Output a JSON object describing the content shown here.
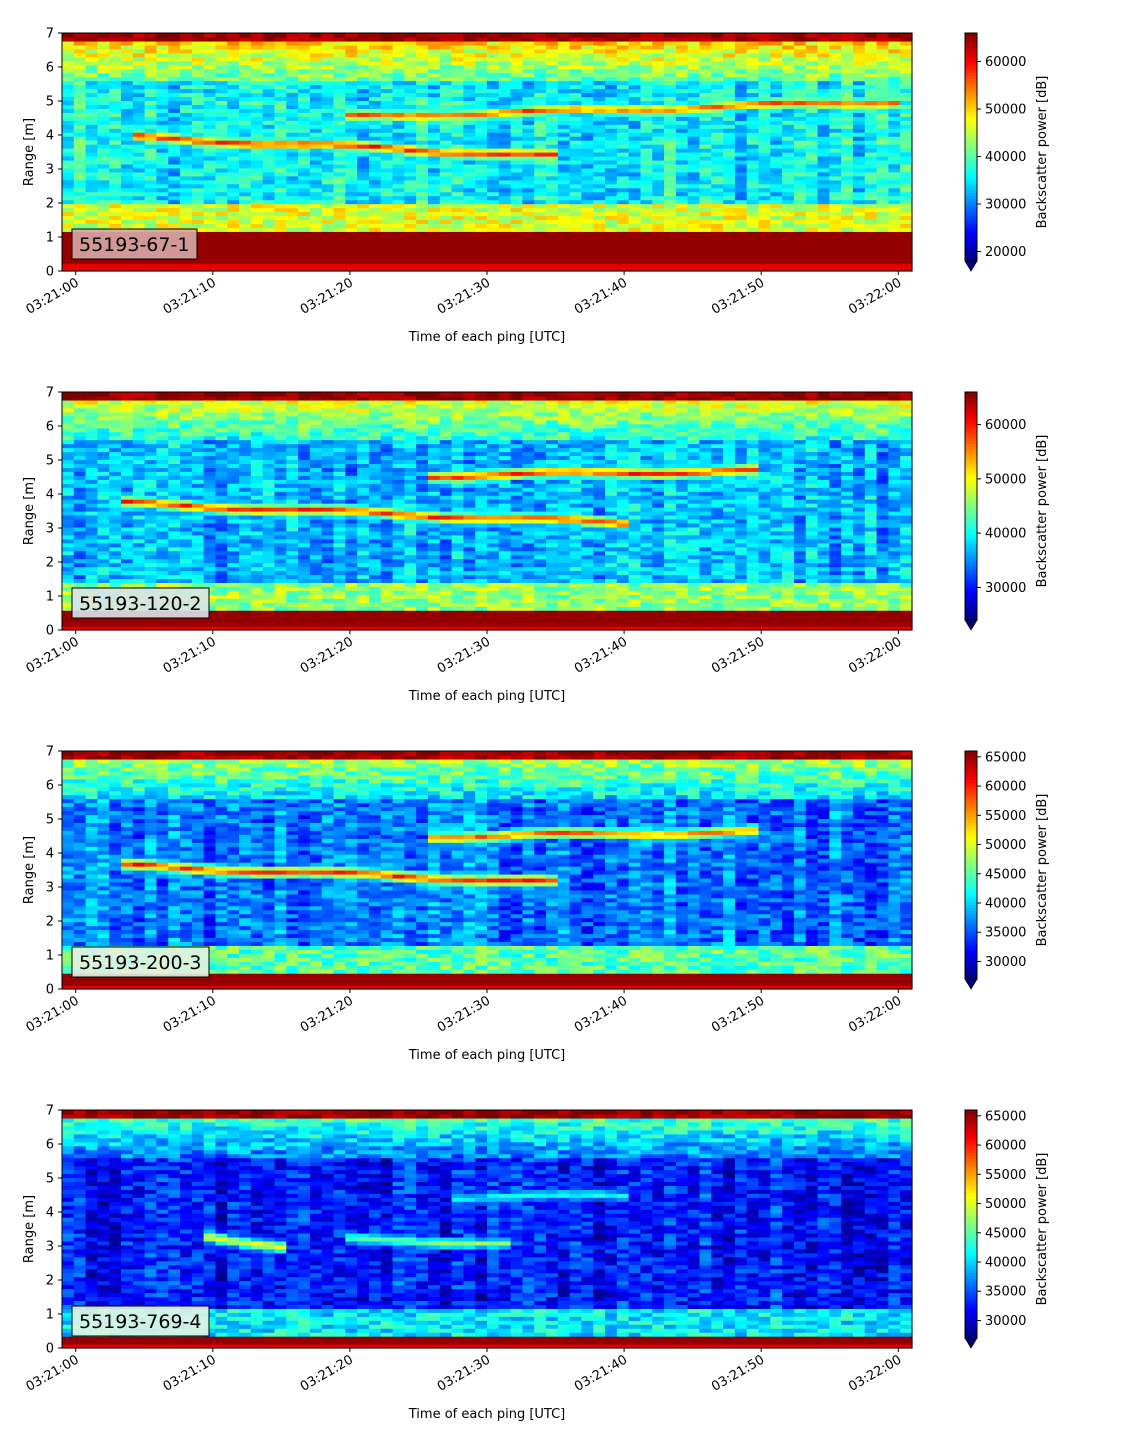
{
  "chart_data": [
    {
      "type": "heatmap",
      "label": "55193-67-1",
      "xlabel": "Time of each ping [UTC]",
      "ylabel": "Range [m]",
      "colorbar_label": "Backscatter power [dB]",
      "xticks": [
        "03:21:00",
        "03:21:10",
        "03:21:20",
        "03:21:30",
        "03:21:40",
        "03:21:50",
        "03:22:00"
      ],
      "xlim_seconds_after_03_21_00": [
        -1,
        61
      ],
      "ylim": [
        0,
        7
      ],
      "yticks": [
        0,
        1,
        2,
        3,
        4,
        5,
        6,
        7
      ],
      "clim": [
        18000,
        66000
      ],
      "colorbar_ticks": [
        20000,
        30000,
        40000,
        50000,
        60000
      ],
      "colorbar_extend": "min",
      "colormap": "jet",
      "features": {
        "bottom_strong_band_m": [
          0.25,
          1.15
        ],
        "bands": [
          {
            "from_s": 4,
            "to_s": 35,
            "start_range_m": 3.95,
            "end_range_m": 3.4,
            "peak": 60000
          },
          {
            "from_s": 20,
            "to_s": 60,
            "start_range_m": 4.55,
            "end_range_m": 5.0,
            "peak": 57000
          }
        ]
      }
    },
    {
      "type": "heatmap",
      "label": "55193-120-2",
      "xlabel": "Time of each ping [UTC]",
      "ylabel": "Range [m]",
      "colorbar_label": "Backscatter power [dB]",
      "xticks": [
        "03:21:00",
        "03:21:10",
        "03:21:20",
        "03:21:30",
        "03:21:40",
        "03:21:50",
        "03:22:00"
      ],
      "xlim_seconds_after_03_21_00": [
        -1,
        61
      ],
      "ylim": [
        0,
        7
      ],
      "yticks": [
        0,
        1,
        2,
        3,
        4,
        5,
        6,
        7
      ],
      "clim": [
        24000,
        66000
      ],
      "colorbar_ticks": [
        30000,
        40000,
        50000,
        60000
      ],
      "colorbar_extend": "min",
      "colormap": "jet",
      "features": {
        "bottom_strong_band_m": [
          0.1,
          0.6
        ],
        "bands": [
          {
            "from_s": 3,
            "to_s": 40,
            "start_range_m": 3.75,
            "end_range_m": 3.15,
            "peak": 60000
          },
          {
            "from_s": 26,
            "to_s": 50,
            "start_range_m": 4.55,
            "end_range_m": 4.7,
            "peak": 60000
          }
        ]
      }
    },
    {
      "type": "heatmap",
      "label": "55193-200-3",
      "xlabel": "Time of each ping [UTC]",
      "ylabel": "Range [m]",
      "colorbar_label": "Backscatter power [dB]",
      "xticks": [
        "03:21:00",
        "03:21:10",
        "03:21:20",
        "03:21:30",
        "03:21:40",
        "03:21:50",
        "03:22:00"
      ],
      "xlim_seconds_after_03_21_00": [
        -1,
        61
      ],
      "ylim": [
        0,
        7
      ],
      "yticks": [
        0,
        1,
        2,
        3,
        4,
        5,
        6,
        7
      ],
      "clim": [
        27000,
        66000
      ],
      "colorbar_ticks": [
        30000,
        35000,
        40000,
        45000,
        50000,
        55000,
        60000,
        65000
      ],
      "colorbar_extend": "min",
      "colormap": "jet",
      "features": {
        "bottom_strong_band_m": [
          0.15,
          0.45
        ],
        "bands": [
          {
            "from_s": 3,
            "to_s": 35,
            "start_range_m": 3.65,
            "end_range_m": 3.15,
            "peak": 60000
          },
          {
            "from_s": 26,
            "to_s": 50,
            "start_range_m": 4.5,
            "end_range_m": 4.65,
            "peak": 58000
          }
        ]
      }
    },
    {
      "type": "heatmap",
      "label": "55193-769-4",
      "xlabel": "Time of each ping [UTC]",
      "ylabel": "Range [m]",
      "colorbar_label": "Backscatter power [dB]",
      "xticks": [
        "03:21:00",
        "03:21:10",
        "03:21:20",
        "03:21:30",
        "03:21:40",
        "03:21:50",
        "03:22:00"
      ],
      "xlim_seconds_after_03_21_00": [
        -1,
        61
      ],
      "ylim": [
        0,
        7
      ],
      "yticks": [
        0,
        1,
        2,
        3,
        4,
        5,
        6,
        7
      ],
      "clim": [
        27000,
        66000
      ],
      "colorbar_ticks": [
        30000,
        35000,
        40000,
        45000,
        50000,
        55000,
        60000,
        65000
      ],
      "colorbar_extend": "min",
      "colormap": "jet",
      "features": {
        "bottom_strong_band_m": [
          0.15,
          0.4
        ],
        "bands": [
          {
            "from_s": 9,
            "to_s": 15,
            "start_range_m": 3.35,
            "end_range_m": 3.0,
            "peak": 52000
          },
          {
            "from_s": 20,
            "to_s": 32,
            "start_range_m": 3.2,
            "end_range_m": 3.1,
            "peak": 47000
          },
          {
            "from_s": 27,
            "to_s": 40,
            "start_range_m": 4.45,
            "end_range_m": 4.5,
            "peak": 43000
          }
        ]
      }
    }
  ]
}
